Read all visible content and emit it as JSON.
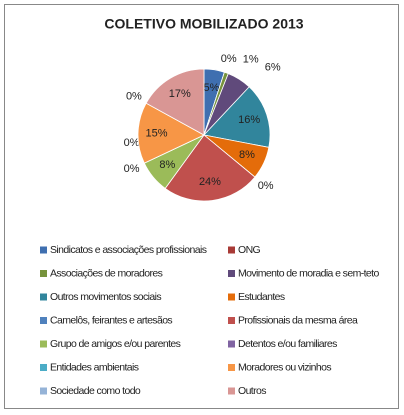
{
  "chart_data": {
    "type": "pie",
    "title": "COLETIVO MOBILIZADO 2013",
    "categories": [
      "Sindicatos e associações profissionais",
      "ONG",
      "Associações de moradores",
      "Movimento de moradia e sem-teto",
      "Outros movimentos sociais",
      "Estudantes",
      "Camelôs, feirantes e artesãos",
      "Profissionais da mesma área",
      "Grupo de amigos e/ou parentes",
      "Detentos e/ou familiares",
      "Entidades ambientais",
      "Moradores ou vizinhos",
      "Sociedade como todo",
      "Outros"
    ],
    "values": [
      5,
      0,
      1,
      6,
      16,
      8,
      0,
      24,
      8,
      0,
      0,
      15,
      0,
      17
    ],
    "value_labels": [
      "5%",
      "0%",
      "1%",
      "6%",
      "16%",
      "8%",
      "0%",
      "24%",
      "8%",
      "0%",
      "0%",
      "15%",
      "0%",
      "17%"
    ],
    "colors": [
      "#3f6fb0",
      "#a83a36",
      "#77933c",
      "#604a7b",
      "#31859c",
      "#e46c0a",
      "#4f81bd",
      "#c0504d",
      "#9bbb59",
      "#8064a2",
      "#4bacc6",
      "#f79646",
      "#95b3d7",
      "#d99694"
    ],
    "legend": "bottom"
  }
}
